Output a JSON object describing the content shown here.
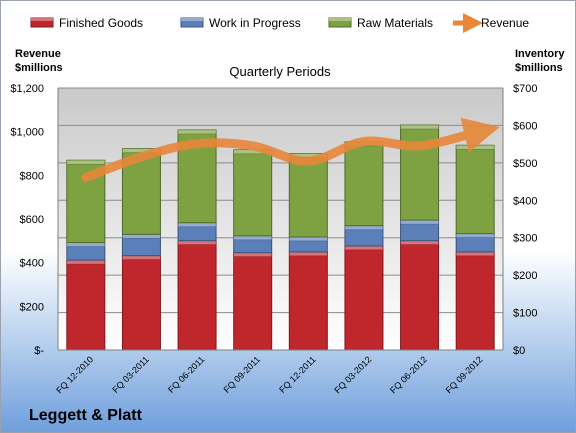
{
  "company": "Leggett & Platt",
  "chart_data": {
    "type": "bar",
    "stacked": true,
    "title": "Quarterly Periods",
    "legend": {
      "placement": "top",
      "entries": [
        "Finished Goods",
        "Work in Progress",
        "Raw Materials",
        "Revenue"
      ]
    },
    "categories": [
      "FQ 12-2010",
      "FQ 03-2011",
      "FQ 06-2011",
      "FQ 09-2011",
      "FQ 12-2011",
      "FQ 03-2012",
      "FQ 06-2012",
      "FQ 09-2012"
    ],
    "left_axis": {
      "label_line1": "Revenue",
      "label_line2": "$millions",
      "range": [
        0,
        1200
      ],
      "ticks": [
        0,
        200,
        400,
        600,
        800,
        1000,
        1200
      ],
      "tick_labels": [
        "$-",
        "$200",
        "$400",
        "$600",
        "$800",
        "$1,000",
        "$1,200"
      ]
    },
    "right_axis": {
      "label_line1": "Inventory",
      "label_line2": "$millions",
      "range": [
        0,
        700
      ],
      "ticks": [
        0,
        100,
        200,
        300,
        400,
        500,
        600,
        700
      ],
      "tick_labels": [
        "$0",
        "$100",
        "$200",
        "$300",
        "$400",
        "$500",
        "$600",
        "$700"
      ]
    },
    "series": [
      {
        "name": "Finished Goods",
        "type": "bar",
        "axis": "right",
        "color": "#c0272d",
        "values": [
          240,
          252,
          292,
          260,
          262,
          278,
          292,
          262
        ]
      },
      {
        "name": "Work in Progress",
        "type": "bar",
        "axis": "right",
        "color": "#5b7fb8",
        "values": [
          47,
          57,
          48,
          45,
          40,
          54,
          55,
          49
        ]
      },
      {
        "name": "Raw Materials",
        "type": "bar",
        "axis": "right",
        "color": "#7ea142",
        "values": [
          220,
          229,
          248,
          230,
          223,
          224,
          254,
          236
        ]
      },
      {
        "name": "Revenue",
        "type": "line",
        "axis": "left",
        "color": "#e8873a",
        "values": [
          790,
          885,
          945,
          935,
          865,
          955,
          935,
          995
        ]
      }
    ],
    "grid": true
  }
}
